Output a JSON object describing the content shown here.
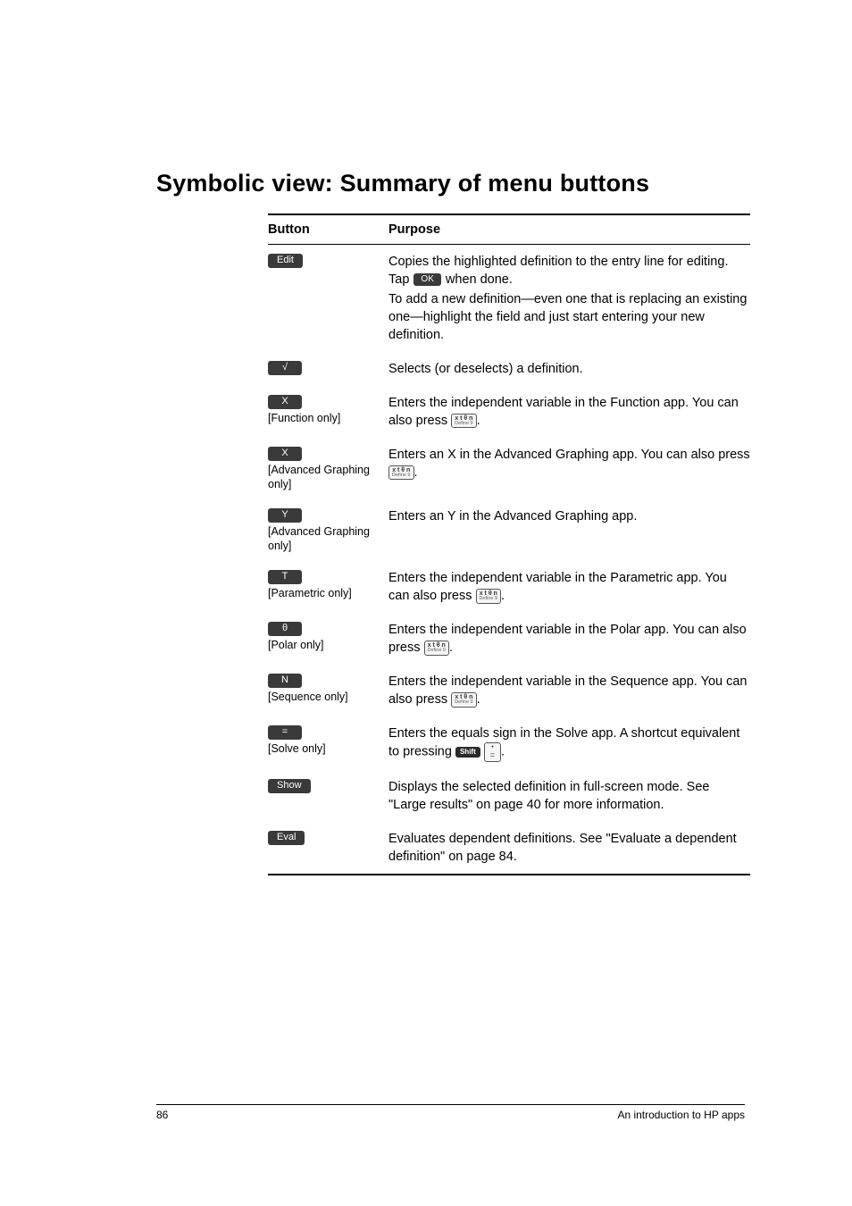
{
  "heading": "Symbolic view: Summary of menu buttons",
  "header": {
    "button": "Button",
    "purpose": "Purpose"
  },
  "rows": [
    {
      "btn_label": "Edit",
      "caption": "",
      "p1a": "Copies the highlighted definition to the entry line for editing. Tap ",
      "inline_btn": "OK",
      "p1b": " when done.",
      "p2": "To add a new definition—even one that is replacing an existing one—highlight the field and just start entering your new definition."
    },
    {
      "btn_label": "√",
      "caption": "",
      "p1": "Selects (or deselects) a definition."
    },
    {
      "btn_label": "X",
      "caption": "[Function only]",
      "p1a": "Enters the independent variable in the Function app. You can also press ",
      "key": true,
      "p1b": "."
    },
    {
      "btn_label": "X",
      "caption": "[Advanced Graphing only]",
      "p1a": "Enters an X in the Advanced Graphing app. You can also press ",
      "key": true,
      "p1b": "."
    },
    {
      "btn_label": "Y",
      "caption": "[Advanced Graphing only]",
      "p1": "Enters an Y in the Advanced Graphing app."
    },
    {
      "btn_label": "T",
      "caption": "[Parametric only]",
      "p1a": "Enters the independent variable in the Parametric app. You can also press ",
      "key": true,
      "p1b": "."
    },
    {
      "btn_label": "θ",
      "caption": "[Polar only]",
      "p1a": "Enters the independent variable in the Polar app. You can also press ",
      "key": true,
      "p1b": "."
    },
    {
      "btn_label": "N",
      "caption": "[Sequence only]",
      "p1a": "Enters the independent variable in the Sequence app. You can also press ",
      "key": true,
      "p1b": "."
    },
    {
      "btn_label": "=",
      "caption": "[Solve only]",
      "p1a": "Enters the equals sign in the Solve app. A shortcut equivalent to pressing ",
      "shift_eq": true,
      "p1b": "."
    },
    {
      "btn_label": "Show",
      "caption": "",
      "p1": "Displays the selected definition in full-screen mode. See \"Large results\" on page 40 for more information."
    },
    {
      "btn_label": "Eval",
      "caption": "",
      "p1": "Evaluates dependent definitions. See \"Evaluate a dependent definition\" on page 84."
    }
  ],
  "key_glyph": {
    "top": "x t θ n",
    "bot": "Define  9"
  },
  "shift_label": "Shift",
  "eq_glyph": {
    "top": "•",
    "bot": "="
  },
  "footer": {
    "page": "86",
    "text": "An introduction to HP apps"
  }
}
